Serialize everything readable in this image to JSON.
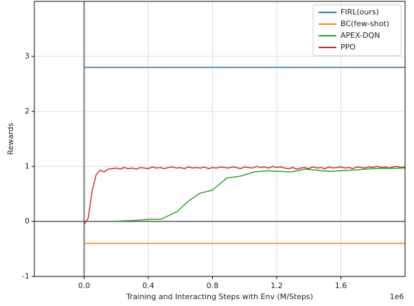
{
  "chart_data": {
    "type": "line",
    "xlabel": "Training and Interacting Steps with Env (M/Steps)",
    "ylabel": "Rewards",
    "x_offset_text": "1e6",
    "xlim": [
      -0.31,
      2.0
    ],
    "ylim": [
      -1,
      4
    ],
    "xticks": [
      {
        "value": 0,
        "label": "0.0"
      },
      0.4,
      0.8,
      1.2,
      1.6
    ],
    "yticks": [
      -1,
      0,
      1,
      2,
      3
    ],
    "grid": true,
    "zero_lines": true,
    "legend": "upper right",
    "series": [
      {
        "name": "FIRL(ours)",
        "color": "#1f77b4",
        "x": [
          0,
          2.0
        ],
        "values": [
          2.8,
          2.8
        ]
      },
      {
        "name": "BC(few-shot)",
        "color": "#ff7f0e",
        "x": [
          0,
          2.0
        ],
        "values": [
          -0.4,
          -0.4
        ]
      },
      {
        "name": "APEX-DQN",
        "color": "#2ca02c",
        "x": [
          0.17,
          0.33,
          0.41,
          0.48,
          0.58,
          0.65,
          0.72,
          0.8,
          0.89,
          0.97,
          1.06,
          1.14,
          1.29,
          1.38,
          1.53,
          1.66,
          1.8,
          2.0
        ],
        "values": [
          0,
          0.02,
          0.04,
          0.04,
          0.18,
          0.37,
          0.51,
          0.57,
          0.79,
          0.82,
          0.9,
          0.92,
          0.9,
          0.95,
          0.91,
          0.93,
          0.96,
          0.97
        ]
      },
      {
        "name": "PPO",
        "color": "#d62728",
        "x": [
          0,
          0.025,
          0.05,
          0.075,
          0.1,
          0.125,
          0.15,
          0.175,
          0.2,
          0.225,
          0.25,
          0.275,
          0.3,
          0.325,
          0.35,
          0.375,
          0.4,
          0.425,
          0.45,
          0.475,
          0.5,
          0.525,
          0.55,
          0.575,
          0.6,
          0.625,
          0.65,
          0.675,
          0.7,
          0.725,
          0.75,
          0.775,
          0.8,
          0.825,
          0.85,
          0.875,
          0.9,
          0.925,
          0.95,
          0.975,
          1.0,
          1.025,
          1.05,
          1.075,
          1.1,
          1.125,
          1.15,
          1.175,
          1.2,
          1.225,
          1.25,
          1.275,
          1.3,
          1.325,
          1.35,
          1.375,
          1.4,
          1.425,
          1.45,
          1.475,
          1.5,
          1.525,
          1.55,
          1.575,
          1.6,
          1.625,
          1.65,
          1.675,
          1.7,
          1.725,
          1.75,
          1.775,
          1.8,
          1.825,
          1.85,
          1.875,
          1.9,
          1.925,
          1.95,
          1.975,
          2.0
        ],
        "values": [
          -0.05,
          0.05,
          0.55,
          0.85,
          0.93,
          0.9,
          0.95,
          0.96,
          0.97,
          0.95,
          0.98,
          0.96,
          0.97,
          0.95,
          0.98,
          0.97,
          0.96,
          0.99,
          0.97,
          0.98,
          0.96,
          0.98,
          0.99,
          0.97,
          0.98,
          0.96,
          0.99,
          0.97,
          0.98,
          0.97,
          0.99,
          0.96,
          0.98,
          0.97,
          0.99,
          0.98,
          0.97,
          0.99,
          0.98,
          0.96,
          0.99,
          0.98,
          0.97,
          1.0,
          0.98,
          0.99,
          0.97,
          1.0,
          0.98,
          0.99,
          0.97,
          0.96,
          0.98,
          0.95,
          0.97,
          0.98,
          0.96,
          0.99,
          0.97,
          0.98,
          0.96,
          0.99,
          0.97,
          0.98,
          0.99,
          0.97,
          0.98,
          0.96,
          0.99,
          0.98,
          0.97,
          0.99,
          0.98,
          1.0,
          0.98,
          0.99,
          0.97,
          0.99,
          1.0,
          0.98,
          0.99
        ]
      }
    ]
  }
}
